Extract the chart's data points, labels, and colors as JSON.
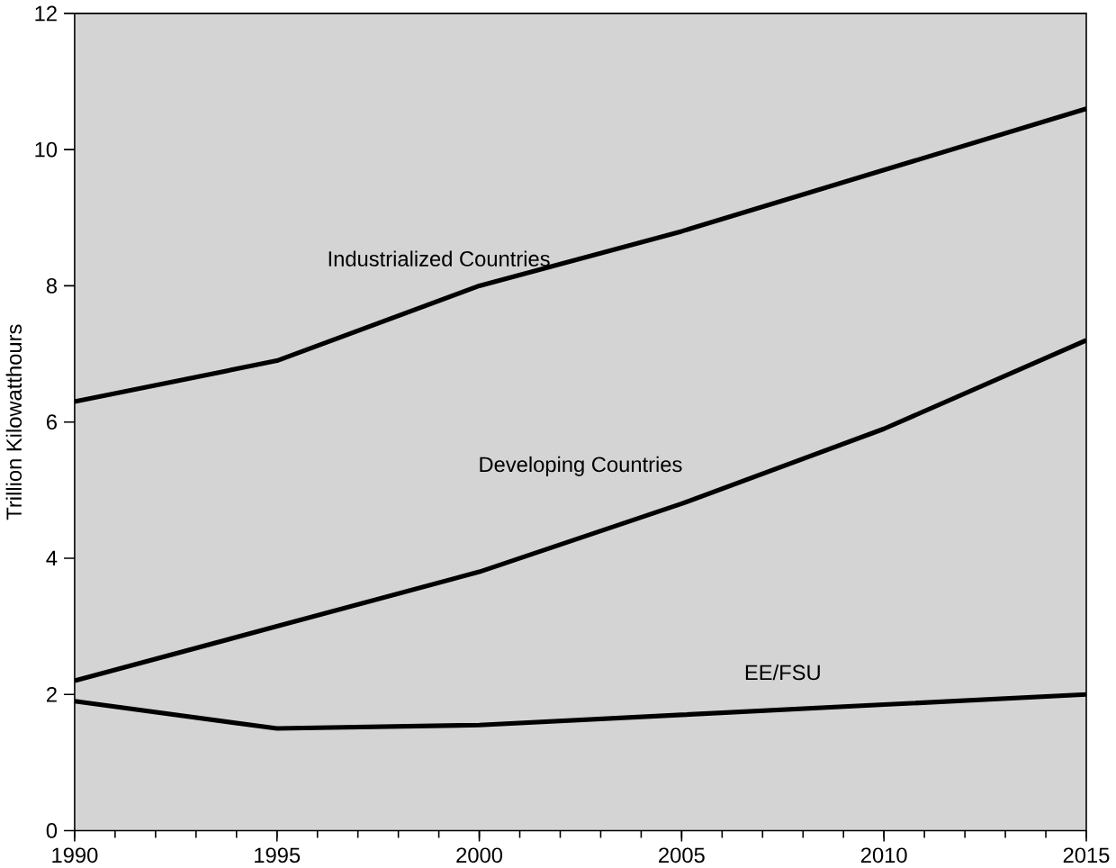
{
  "chart_data": {
    "type": "line",
    "ylabel": "Trillion Kilowatthours",
    "x": [
      1990,
      1995,
      2000,
      2005,
      2010,
      2015
    ],
    "series": [
      {
        "name": "Industrialized Countries",
        "color": "#000000",
        "values": [
          6.3,
          6.9,
          8.0,
          8.8,
          9.7,
          10.6
        ]
      },
      {
        "name": "Developing Countries",
        "color": "#000000",
        "values": [
          2.2,
          3.0,
          3.8,
          4.8,
          5.9,
          7.2
        ]
      },
      {
        "name": "EE/FSU",
        "color": "#000000",
        "values": [
          1.9,
          1.5,
          1.55,
          1.7,
          1.85,
          2.0
        ]
      }
    ],
    "xlim": [
      1990,
      2015
    ],
    "ylim": [
      0,
      12
    ],
    "xticks": [
      1990,
      1995,
      2000,
      2005,
      2010,
      2015
    ],
    "yticks": [
      0,
      2,
      4,
      6,
      8,
      10,
      12
    ],
    "grid": false,
    "legend": false,
    "marker": "none",
    "line_style": "solid"
  }
}
